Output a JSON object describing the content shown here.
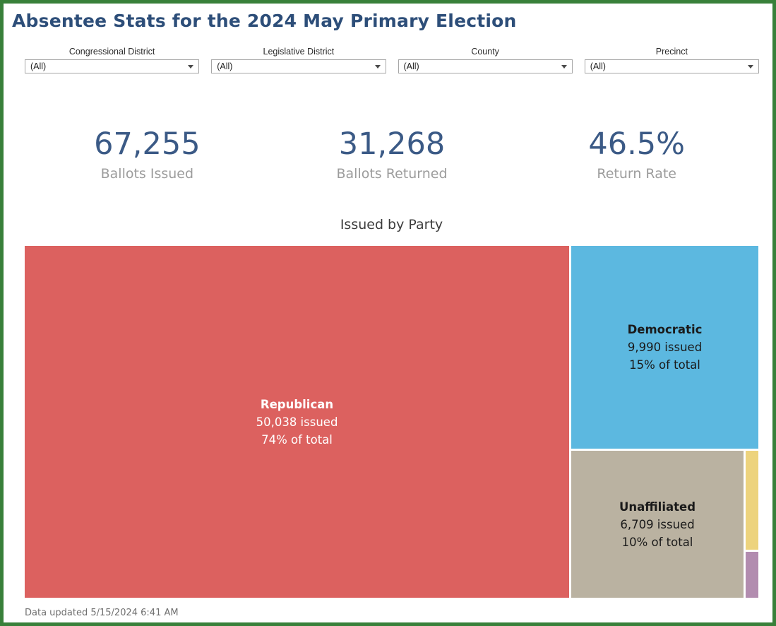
{
  "page": {
    "title": "Absentee Stats for the 2024 May Primary Election",
    "border_color": "#38803A",
    "title_color": "#2d4e79"
  },
  "filters": [
    {
      "label": "Congressional District",
      "value": "(All)"
    },
    {
      "label": "Legislative District",
      "value": "(All)"
    },
    {
      "label": "County",
      "value": "(All)"
    },
    {
      "label": "Precinct",
      "value": "(All)"
    }
  ],
  "kpis": [
    {
      "value": "67,255",
      "label": "Ballots Issued"
    },
    {
      "value": "31,268",
      "label": "Ballots Returned"
    },
    {
      "value": "46.5%",
      "label": "Return Rate"
    }
  ],
  "chart_data": {
    "type": "treemap",
    "title": "Issued by Party",
    "value_label": "ballots issued",
    "blocks": [
      {
        "party": "Republican",
        "issued": 50038,
        "issued_label": "50,038 issued",
        "pct_of_total": 74,
        "pct_label": "74% of total",
        "color": "#DC615F",
        "text_color": "#ffffff"
      },
      {
        "party": "Democratic",
        "issued": 9990,
        "issued_label": "9,990 issued",
        "pct_of_total": 15,
        "pct_label": "15% of total",
        "color": "#5CB8E0",
        "text_color": "#1a1a1a"
      },
      {
        "party": "Unaffiliated",
        "issued": 6709,
        "issued_label": "6,709 issued",
        "pct_of_total": 10,
        "pct_label": "10% of total",
        "color": "#BAB2A1",
        "text_color": "#1a1a1a"
      },
      {
        "party": "",
        "color": "#EDD37D"
      },
      {
        "party": "",
        "color": "#B28CAF"
      }
    ]
  },
  "footer": {
    "updated_text": "Data updated 5/15/2024 6:41 AM"
  }
}
